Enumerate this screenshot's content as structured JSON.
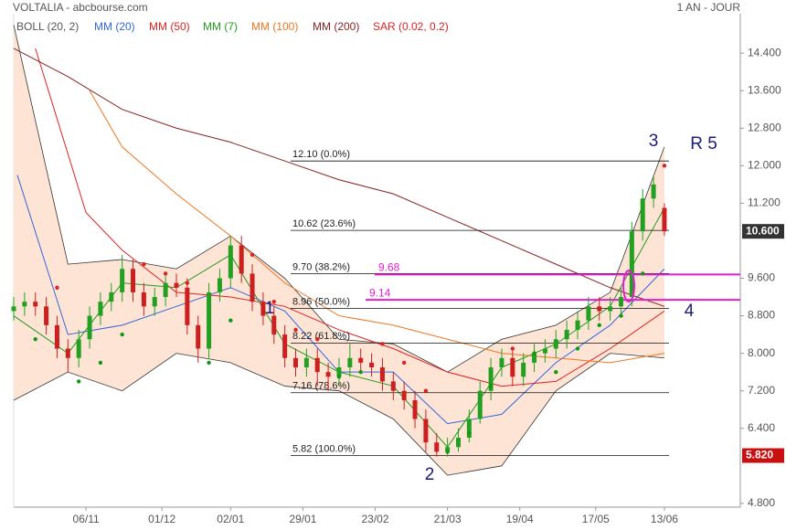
{
  "header": {
    "title": "VOLTALIA - abcbourse.com",
    "period": "1 AN - JOUR"
  },
  "chart_data": {
    "type": "candlestick",
    "xlim": [
      0,
      201
    ],
    "xticks": [
      {
        "value": 20,
        "label": "06/11"
      },
      {
        "value": 41,
        "label": "01/12"
      },
      {
        "value": 60,
        "label": "02/01"
      },
      {
        "value": 80,
        "label": "29/01"
      },
      {
        "value": 100,
        "label": "23/02"
      },
      {
        "value": 120,
        "label": "21/03"
      },
      {
        "value": 140,
        "label": "19/04"
      },
      {
        "value": 161,
        "label": "17/05"
      },
      {
        "value": 180,
        "label": "13/06"
      }
    ],
    "ylim": [
      4.72,
      15.24
    ],
    "yticks": [
      {
        "value": 14.4,
        "label": "14.400"
      },
      {
        "value": 13.6,
        "label": "13.600"
      },
      {
        "value": 12.8,
        "label": "12.800"
      },
      {
        "value": 12.0,
        "label": "12.000"
      },
      {
        "value": 11.2,
        "label": "11.200"
      },
      {
        "value": 9.6,
        "label": "9.600"
      },
      {
        "value": 8.8,
        "label": "8.800"
      },
      {
        "value": 8.0,
        "label": "8.000"
      },
      {
        "value": 7.2,
        "label": "7.200"
      },
      {
        "value": 6.4,
        "label": "6.400"
      },
      {
        "value": 4.8,
        "label": "4.800"
      }
    ],
    "up_color": "#22a022",
    "down_color": "#cc2020",
    "x": [
      0,
      3,
      6,
      9,
      12,
      15,
      18,
      21,
      24,
      27,
      30,
      33,
      36,
      39,
      42,
      45,
      48,
      51,
      54,
      57,
      60,
      63,
      66,
      69,
      72,
      75,
      78,
      81,
      84,
      87,
      90,
      93,
      96,
      99,
      102,
      105,
      108,
      111,
      114,
      117,
      120,
      123,
      126,
      129,
      132,
      135,
      138,
      141,
      144,
      147,
      150,
      153,
      156,
      159,
      162,
      165,
      168,
      171,
      174,
      177,
      180
    ],
    "open": [
      8.9,
      9.0,
      9.1,
      9.0,
      8.6,
      8.1,
      7.9,
      8.3,
      8.8,
      9.1,
      9.3,
      9.8,
      9.3,
      9.0,
      9.2,
      9.5,
      9.4,
      8.6,
      8.1,
      9.3,
      9.6,
      10.3,
      9.7,
      9.1,
      8.8,
      8.4,
      7.9,
      7.7,
      7.9,
      7.6,
      7.5,
      7.7,
      7.9,
      7.8,
      7.7,
      7.4,
      7.2,
      7.0,
      6.6,
      6.1,
      5.9,
      6.0,
      6.2,
      6.6,
      7.2,
      7.7,
      7.9,
      7.5,
      7.8,
      8.0,
      8.1,
      8.3,
      8.5,
      8.7,
      9.0,
      8.9,
      9.0,
      9.2,
      10.6,
      11.3,
      11.1
    ],
    "high": [
      9.2,
      9.3,
      9.3,
      9.2,
      8.8,
      8.3,
      8.5,
      9.0,
      9.3,
      9.5,
      10.1,
      10.0,
      9.5,
      9.4,
      9.7,
      9.7,
      9.6,
      8.8,
      9.5,
      9.8,
      10.5,
      10.5,
      9.9,
      9.3,
      9.0,
      8.6,
      8.1,
      8.1,
      8.1,
      7.8,
      7.9,
      8.2,
      8.1,
      8.0,
      7.9,
      7.6,
      7.4,
      7.2,
      6.8,
      6.3,
      6.2,
      6.4,
      6.8,
      7.4,
      7.9,
      8.1,
      8.1,
      8.0,
      8.2,
      8.3,
      8.5,
      8.7,
      8.9,
      9.2,
      9.2,
      9.2,
      9.4,
      10.8,
      11.5,
      11.8,
      11.2
    ],
    "low": [
      8.7,
      8.8,
      8.8,
      8.4,
      7.9,
      7.6,
      7.7,
      8.1,
      8.6,
      8.9,
      9.1,
      9.1,
      8.8,
      8.8,
      9.0,
      9.2,
      8.4,
      7.8,
      7.9,
      9.1,
      9.4,
      9.5,
      8.9,
      8.6,
      8.2,
      7.7,
      7.5,
      7.5,
      7.3,
      7.2,
      7.3,
      7.5,
      7.6,
      7.5,
      7.2,
      7.0,
      6.8,
      6.4,
      5.9,
      5.8,
      5.8,
      5.9,
      6.1,
      6.5,
      7.0,
      7.5,
      7.3,
      7.3,
      7.6,
      7.8,
      7.9,
      8.1,
      8.3,
      8.5,
      8.7,
      8.7,
      8.8,
      9.0,
      10.4,
      11.1,
      10.5
    ],
    "close": [
      9.0,
      9.1,
      9.0,
      8.6,
      8.1,
      7.9,
      8.3,
      8.8,
      9.1,
      9.3,
      9.8,
      9.3,
      9.0,
      9.2,
      9.5,
      9.4,
      8.6,
      8.1,
      9.3,
      9.6,
      10.3,
      9.7,
      9.1,
      8.8,
      8.4,
      7.9,
      7.7,
      7.9,
      7.6,
      7.5,
      7.7,
      7.9,
      7.8,
      7.7,
      7.4,
      7.2,
      7.0,
      6.6,
      6.1,
      5.9,
      6.0,
      6.2,
      6.6,
      7.2,
      7.7,
      7.9,
      7.5,
      7.8,
      8.0,
      8.1,
      8.3,
      8.5,
      8.7,
      9.0,
      8.9,
      9.0,
      9.2,
      10.6,
      11.3,
      11.6,
      10.6
    ],
    "bollinger": {
      "name": "BOLL (20, 2)",
      "color": "#555555",
      "line_color": "#333333",
      "fill": "#fde4d4",
      "x": [
        0,
        15,
        30,
        45,
        60,
        75,
        90,
        105,
        120,
        135,
        150,
        165,
        180
      ],
      "upper": [
        15.0,
        9.9,
        10.0,
        9.8,
        10.5,
        9.6,
        8.3,
        8.2,
        7.6,
        8.3,
        8.6,
        9.3,
        12.4
      ],
      "lower": [
        7.0,
        7.6,
        7.2,
        8.0,
        7.8,
        7.3,
        7.2,
        6.6,
        5.4,
        5.6,
        7.2,
        8.0,
        7.9
      ]
    },
    "series": [
      {
        "name": "MM (20)",
        "color": "#3366dd",
        "x": [
          1,
          15,
          30,
          45,
          60,
          75,
          90,
          105,
          120,
          135,
          150,
          165,
          180
        ],
        "values": [
          11.8,
          8.4,
          8.6,
          9.0,
          9.4,
          8.9,
          7.6,
          7.6,
          6.5,
          6.7,
          7.8,
          8.6,
          9.8
        ]
      },
      {
        "name": "MM (50)",
        "color": "#dd2222",
        "x": [
          6,
          20,
          30,
          45,
          60,
          75,
          90,
          105,
          120,
          135,
          150,
          165,
          180
        ],
        "values": [
          14.5,
          11.0,
          10.2,
          9.3,
          9.2,
          9.0,
          8.5,
          8.1,
          7.6,
          7.3,
          7.4,
          8.1,
          8.9
        ]
      },
      {
        "name": "MM (7)",
        "color": "#229922",
        "x": [
          0,
          15,
          30,
          45,
          60,
          75,
          90,
          105,
          120,
          135,
          150,
          165,
          180
        ],
        "values": [
          8.8,
          8.0,
          9.5,
          9.4,
          10.1,
          8.2,
          7.6,
          7.3,
          6.0,
          7.7,
          8.2,
          9.0,
          11.1
        ]
      },
      {
        "name": "MM (100)",
        "color": "#ee7722",
        "x": [
          21,
          30,
          45,
          60,
          75,
          90,
          105,
          120,
          135,
          150,
          165,
          180
        ],
        "values": [
          13.6,
          12.4,
          11.4,
          10.5,
          9.5,
          8.8,
          8.6,
          8.3,
          8.0,
          7.9,
          7.8,
          8.0
        ]
      },
      {
        "name": "MM (200)",
        "color": "#882222",
        "x": [
          0,
          15,
          30,
          45,
          60,
          75,
          90,
          105,
          120,
          135,
          150,
          165,
          180
        ],
        "values": [
          14.5,
          13.9,
          13.2,
          12.8,
          12.5,
          12.1,
          11.7,
          11.4,
          10.9,
          10.4,
          9.9,
          9.4,
          9.0
        ]
      }
    ],
    "sar": {
      "name": "SAR (0.02, 0.2)",
      "color": "#dd2222",
      "below_color": "#119911",
      "x": [
        6,
        12,
        18,
        24,
        30,
        36,
        42,
        48,
        54,
        60,
        66,
        72,
        78,
        84,
        90,
        96,
        102,
        108,
        114,
        120,
        126,
        132,
        138,
        144,
        150,
        156,
        162,
        168,
        174,
        180
      ],
      "values": [
        8.3,
        9.4,
        7.4,
        7.8,
        8.4,
        9.9,
        9.7,
        9.5,
        7.8,
        8.7,
        10.1,
        9.1,
        8.5,
        8.3,
        7.5,
        7.6,
        8.2,
        7.8,
        7.2,
        5.9,
        6.3,
        7.3,
        8.1,
        8.0,
        7.6,
        8.1,
        8.6,
        8.8,
        9.7,
        12.0
      ]
    },
    "fibonacci": [
      {
        "value": 12.1,
        "label": "12.10  (0.0%)"
      },
      {
        "value": 10.62,
        "label": "10.62  (23.6%)"
      },
      {
        "value": 9.7,
        "label": "9.70  (38.2%)"
      },
      {
        "value": 8.96,
        "label": "8.96  (50.0%)"
      },
      {
        "value": 8.22,
        "label": "8.22  (61.8%)"
      },
      {
        "value": 7.16,
        "label": "7.16  (78.6%)"
      },
      {
        "value": 5.82,
        "label": "5.82  (100.0%)"
      }
    ],
    "hlines": [
      9.68,
      9.14
    ],
    "hline_color": "#e020d0",
    "last_price": {
      "value": 10.6,
      "label": "10.600"
    },
    "low_price": {
      "value": 5.82,
      "label": "5.820"
    },
    "annotations": [
      "1",
      "2",
      "3",
      "R 5",
      "4"
    ]
  }
}
